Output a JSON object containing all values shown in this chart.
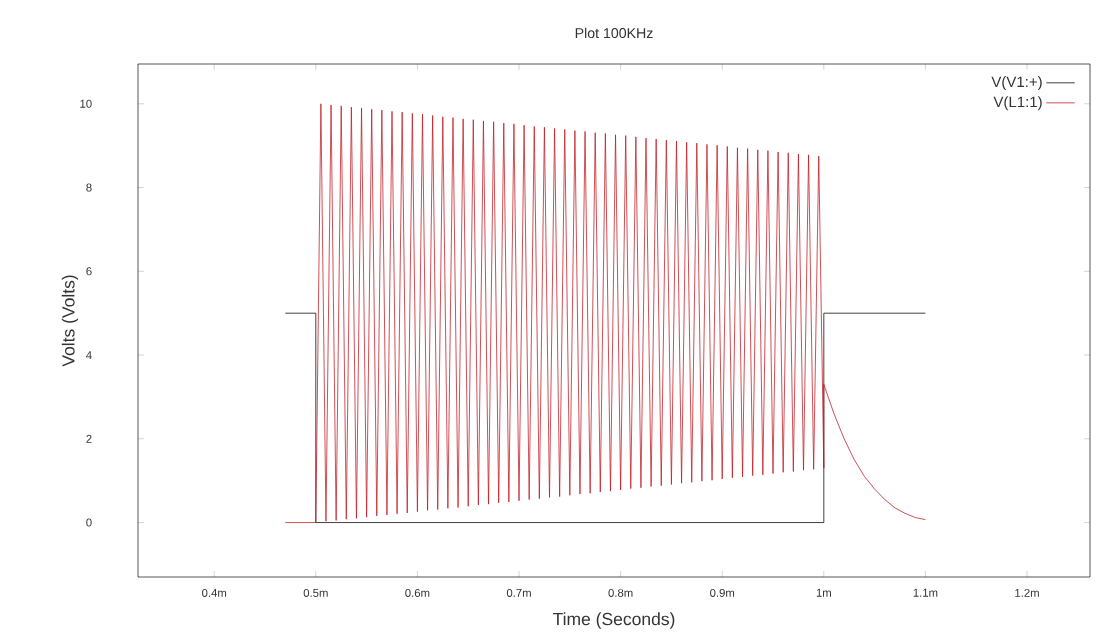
{
  "chart_data": {
    "type": "line",
    "title": "Plot 100KHz",
    "xlabel": "Time (Seconds)",
    "ylabel": "Volts (Volts)",
    "xlim": [
      0.325,
      1.262
    ],
    "ylim": [
      -1.3,
      10.95
    ],
    "xticks": [
      {
        "value": 0.4,
        "label": "0.4m"
      },
      {
        "value": 0.5,
        "label": "0.5m"
      },
      {
        "value": 0.6,
        "label": "0.6m"
      },
      {
        "value": 0.7,
        "label": "0.7m"
      },
      {
        "value": 0.8,
        "label": "0.8m"
      },
      {
        "value": 0.9,
        "label": "0.9m"
      },
      {
        "value": 1,
        "label": "1m"
      },
      {
        "value": 1.1,
        "label": "1.1m"
      },
      {
        "value": 1.2,
        "label": "1.2m"
      }
    ],
    "yticks": [
      0,
      2,
      4,
      6,
      8,
      10
    ],
    "legend": "top right",
    "series": [
      {
        "name": "V(V1:+)",
        "color": "#000000",
        "x": [
          0.47,
          0.5,
          0.5,
          1.0,
          1.0,
          1.1
        ],
        "values": [
          5,
          5,
          0,
          0,
          5,
          5
        ]
      },
      {
        "name": "V(L1:1)",
        "color": "#c0141c",
        "x": [
          0.47,
          0.5,
          0.505,
          0.51,
          0.515,
          0.52,
          0.525,
          0.53,
          0.535,
          0.54,
          0.545,
          0.55,
          0.555,
          0.56,
          0.565,
          0.57,
          0.575,
          0.58,
          0.585,
          0.59,
          0.595,
          0.6,
          0.605,
          0.61,
          0.615,
          0.62,
          0.625,
          0.63,
          0.635,
          0.64,
          0.645,
          0.65,
          0.655,
          0.66,
          0.665,
          0.67,
          0.675,
          0.68,
          0.685,
          0.69,
          0.695,
          0.7,
          0.705,
          0.71,
          0.715,
          0.72,
          0.725,
          0.73,
          0.735,
          0.74,
          0.745,
          0.75,
          0.755,
          0.76,
          0.765,
          0.77,
          0.775,
          0.78,
          0.785,
          0.79,
          0.795,
          0.8,
          0.805,
          0.81,
          0.815,
          0.82,
          0.825,
          0.83,
          0.835,
          0.84,
          0.845,
          0.85,
          0.855,
          0.86,
          0.865,
          0.87,
          0.875,
          0.88,
          0.885,
          0.89,
          0.895,
          0.9,
          0.905,
          0.91,
          0.915,
          0.92,
          0.925,
          0.93,
          0.935,
          0.94,
          0.945,
          0.95,
          0.955,
          0.96,
          0.965,
          0.97,
          0.975,
          0.98,
          0.985,
          0.99,
          0.995,
          1.0,
          1.0,
          1.01,
          1.02,
          1.03,
          1.04,
          1.05,
          1.06,
          1.07,
          1.08,
          1.09,
          1.1
        ],
        "values": [
          0,
          0,
          10,
          0.03,
          9.97,
          0.05,
          9.95,
          0.08,
          9.92,
          0.1,
          9.9,
          0.13,
          9.87,
          0.16,
          9.85,
          0.18,
          9.82,
          0.21,
          9.8,
          0.23,
          9.77,
          0.26,
          9.75,
          0.29,
          9.72,
          0.31,
          9.69,
          0.34,
          9.67,
          0.36,
          9.64,
          0.39,
          9.62,
          0.42,
          9.59,
          0.44,
          9.57,
          0.47,
          9.54,
          0.49,
          9.52,
          0.52,
          9.49,
          0.55,
          9.46,
          0.57,
          9.44,
          0.6,
          9.41,
          0.62,
          9.39,
          0.65,
          9.36,
          0.68,
          9.34,
          0.7,
          9.31,
          0.73,
          9.29,
          0.75,
          9.26,
          0.78,
          9.24,
          0.81,
          9.21,
          0.83,
          9.18,
          0.86,
          9.16,
          0.88,
          9.13,
          0.91,
          9.11,
          0.94,
          9.08,
          0.96,
          9.06,
          0.99,
          9.03,
          1.01,
          9.01,
          1.04,
          8.98,
          1.07,
          8.95,
          1.09,
          8.93,
          1.12,
          8.9,
          1.14,
          8.88,
          1.17,
          8.85,
          1.2,
          8.83,
          1.22,
          8.8,
          1.25,
          8.78,
          1.27,
          8.75,
          1.3,
          3.3,
          2.6,
          2.0,
          1.5,
          1.1,
          0.8,
          0.55,
          0.35,
          0.22,
          0.12,
          0.07
        ]
      }
    ]
  }
}
